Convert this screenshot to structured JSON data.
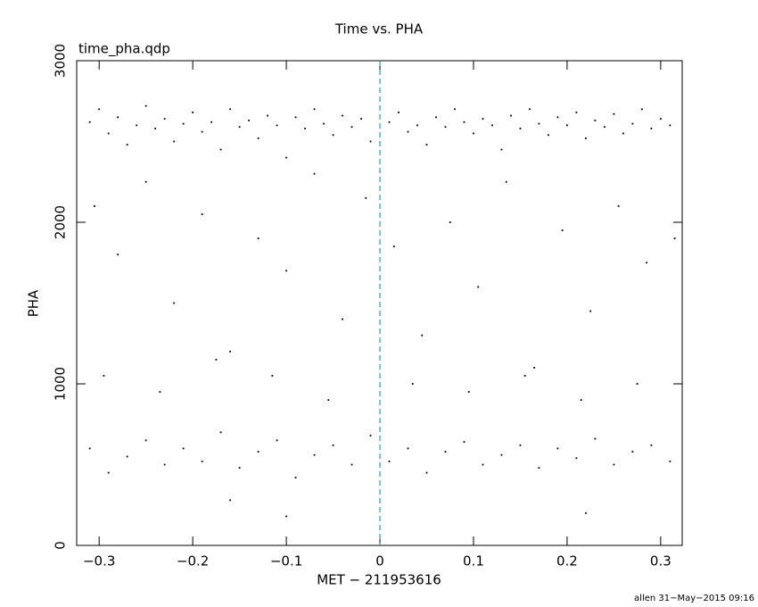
{
  "chart_data": {
    "type": "scatter",
    "title": "Time vs. PHA",
    "subtitle": "time_pha.qdp",
    "x_label": "MET − 211953616",
    "y_label": "PHA",
    "footer": "allen 31−May−2015 09:16",
    "xlim": [
      -0.324,
      0.323
    ],
    "ylim": [
      0,
      3000
    ],
    "xticks": [
      {
        "value": -0.3,
        "label": "−0.3"
      },
      {
        "value": -0.2,
        "label": "−0.2"
      },
      {
        "value": -0.1,
        "label": "−0.1"
      },
      0,
      0.1,
      0.2,
      0.3
    ],
    "yticks": [
      0,
      1000,
      2000,
      3000
    ],
    "vline": {
      "x": 0,
      "color": "#2aa1a8"
    },
    "series": [
      {
        "color": "#000000",
        "x": [
          -0.31,
          -0.3,
          -0.29,
          -0.28,
          -0.27,
          -0.26,
          -0.25,
          -0.24,
          -0.23,
          -0.22,
          -0.21,
          -0.2,
          -0.19,
          -0.18,
          -0.17,
          -0.16,
          -0.15,
          -0.14,
          -0.13,
          -0.12,
          -0.11,
          -0.1,
          -0.09,
          -0.08,
          -0.07,
          -0.06,
          -0.05,
          -0.04,
          -0.03,
          -0.02,
          -0.01,
          0.01,
          0.02,
          0.03,
          0.04,
          0.05,
          0.06,
          0.07,
          0.08,
          0.09,
          0.1,
          0.11,
          0.12,
          0.13,
          0.14,
          0.15,
          0.16,
          0.17,
          0.18,
          0.19,
          0.2,
          0.21,
          0.22,
          0.23,
          0.24,
          0.25,
          0.26,
          0.27,
          0.28,
          0.29,
          0.3,
          0.31,
          -0.305,
          -0.28,
          -0.25,
          -0.22,
          -0.19,
          -0.16,
          -0.13,
          -0.1,
          -0.07,
          -0.04,
          -0.015,
          0.015,
          0.045,
          0.075,
          0.105,
          0.135,
          0.165,
          0.195,
          0.225,
          0.255,
          0.285,
          0.315,
          -0.295,
          -0.235,
          -0.175,
          -0.115,
          -0.055,
          0.035,
          0.095,
          0.155,
          0.215,
          0.275,
          -0.31,
          -0.29,
          -0.27,
          -0.25,
          -0.23,
          -0.21,
          -0.19,
          -0.17,
          -0.15,
          -0.13,
          -0.11,
          -0.09,
          -0.07,
          -0.05,
          -0.03,
          -0.01,
          0.01,
          0.03,
          0.05,
          0.07,
          0.09,
          0.11,
          0.13,
          0.15,
          0.17,
          0.19,
          0.21,
          0.23,
          0.25,
          0.27,
          0.29,
          0.31,
          -0.16,
          0.22,
          -0.1
        ],
        "values": [
          2620,
          2700,
          2550,
          2650,
          2480,
          2600,
          2720,
          2580,
          2640,
          2500,
          2610,
          2680,
          2560,
          2620,
          2450,
          2700,
          2590,
          2630,
          2520,
          2660,
          2600,
          2400,
          2650,
          2580,
          2700,
          2610,
          2540,
          2660,
          2590,
          2640,
          2500,
          2620,
          2680,
          2560,
          2600,
          2480,
          2650,
          2590,
          2700,
          2620,
          2550,
          2640,
          2600,
          2450,
          2660,
          2580,
          2700,
          2610,
          2540,
          2650,
          2600,
          2680,
          2520,
          2630,
          2590,
          2670,
          2550,
          2610,
          2700,
          2580,
          2640,
          2600,
          2100,
          1800,
          2250,
          1500,
          2050,
          1200,
          1900,
          1700,
          2300,
          1400,
          2150,
          1850,
          1300,
          2000,
          1600,
          2250,
          1100,
          1950,
          1450,
          2100,
          1750,
          1900,
          1050,
          950,
          1150,
          1050,
          900,
          1000,
          950,
          1050,
          900,
          1000,
          600,
          450,
          550,
          650,
          500,
          600,
          520,
          700,
          480,
          580,
          650,
          420,
          560,
          620,
          500,
          680,
          520,
          600,
          450,
          580,
          640,
          500,
          560,
          620,
          480,
          600,
          540,
          660,
          500,
          580,
          620,
          520,
          280,
          200,
          180
        ]
      }
    ]
  }
}
